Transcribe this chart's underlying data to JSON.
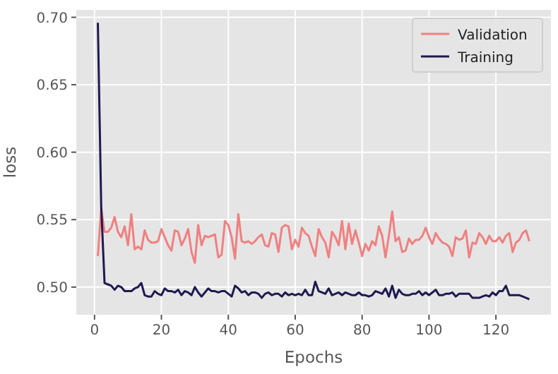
{
  "chart_data": {
    "type": "line",
    "xlabel": "Epochs",
    "ylabel": "loss",
    "x": [
      1,
      2,
      3,
      4,
      5,
      6,
      7,
      8,
      9,
      10,
      11,
      12,
      13,
      14,
      15,
      16,
      17,
      18,
      19,
      20,
      21,
      22,
      23,
      24,
      25,
      26,
      27,
      28,
      29,
      30,
      31,
      32,
      33,
      34,
      35,
      36,
      37,
      38,
      39,
      40,
      41,
      42,
      43,
      44,
      45,
      46,
      47,
      48,
      49,
      50,
      51,
      52,
      53,
      54,
      55,
      56,
      57,
      58,
      59,
      60,
      61,
      62,
      63,
      64,
      65,
      66,
      67,
      68,
      69,
      70,
      71,
      72,
      73,
      74,
      75,
      76,
      77,
      78,
      79,
      80,
      81,
      82,
      83,
      84,
      85,
      86,
      87,
      88,
      89,
      90,
      91,
      92,
      93,
      94,
      95,
      96,
      97,
      98,
      99,
      100,
      101,
      102,
      103,
      104,
      105,
      106,
      107,
      108,
      109,
      110,
      111,
      112,
      113,
      114,
      115,
      116,
      117,
      118,
      119,
      120,
      121,
      122,
      123,
      124,
      125,
      126,
      127,
      128,
      129,
      130
    ],
    "series": [
      {
        "name": "Validation",
        "color": "#f08080",
        "values": [
          0.523,
          0.558,
          0.541,
          0.541,
          0.544,
          0.552,
          0.541,
          0.537,
          0.545,
          0.531,
          0.554,
          0.528,
          0.53,
          0.528,
          0.542,
          0.535,
          0.533,
          0.533,
          0.534,
          0.543,
          0.537,
          0.531,
          0.527,
          0.542,
          0.541,
          0.531,
          0.536,
          0.543,
          0.526,
          0.518,
          0.546,
          0.531,
          0.538,
          0.537,
          0.538,
          0.539,
          0.522,
          0.524,
          0.549,
          0.546,
          0.537,
          0.521,
          0.554,
          0.534,
          0.533,
          0.534,
          0.532,
          0.534,
          0.537,
          0.539,
          0.531,
          0.53,
          0.54,
          0.539,
          0.526,
          0.544,
          0.546,
          0.545,
          0.528,
          0.535,
          0.53,
          0.544,
          0.54,
          0.538,
          0.53,
          0.523,
          0.543,
          0.537,
          0.533,
          0.522,
          0.541,
          0.537,
          0.531,
          0.549,
          0.528,
          0.547,
          0.532,
          0.542,
          0.533,
          0.523,
          0.532,
          0.527,
          0.534,
          0.531,
          0.545,
          0.538,
          0.522,
          0.538,
          0.556,
          0.534,
          0.537,
          0.526,
          0.527,
          0.536,
          0.532,
          0.535,
          0.535,
          0.538,
          0.544,
          0.537,
          0.532,
          0.54,
          0.536,
          0.533,
          0.532,
          0.53,
          0.523,
          0.537,
          0.535,
          0.536,
          0.542,
          0.522,
          0.533,
          0.532,
          0.54,
          0.537,
          0.532,
          0.538,
          0.534,
          0.534,
          0.537,
          0.533,
          0.538,
          0.54,
          0.526,
          0.533,
          0.535,
          0.54,
          0.542,
          0.534
        ]
      },
      {
        "name": "Training",
        "color": "#1f1a4f",
        "values": [
          0.696,
          0.56,
          0.503,
          0.502,
          0.501,
          0.498,
          0.501,
          0.5,
          0.497,
          0.497,
          0.497,
          0.499,
          0.5,
          0.503,
          0.494,
          0.493,
          0.493,
          0.497,
          0.495,
          0.494,
          0.499,
          0.497,
          0.497,
          0.496,
          0.498,
          0.494,
          0.497,
          0.496,
          0.494,
          0.5,
          0.496,
          0.493,
          0.496,
          0.499,
          0.497,
          0.497,
          0.496,
          0.497,
          0.497,
          0.495,
          0.493,
          0.501,
          0.499,
          0.496,
          0.497,
          0.494,
          0.496,
          0.496,
          0.495,
          0.492,
          0.495,
          0.496,
          0.494,
          0.495,
          0.495,
          0.493,
          0.496,
          0.494,
          0.495,
          0.494,
          0.495,
          0.494,
          0.498,
          0.494,
          0.494,
          0.504,
          0.497,
          0.496,
          0.495,
          0.499,
          0.494,
          0.495,
          0.496,
          0.494,
          0.496,
          0.495,
          0.494,
          0.494,
          0.496,
          0.494,
          0.494,
          0.493,
          0.494,
          0.497,
          0.496,
          0.495,
          0.499,
          0.493,
          0.501,
          0.492,
          0.498,
          0.495,
          0.494,
          0.494,
          0.495,
          0.495,
          0.497,
          0.494,
          0.496,
          0.494,
          0.496,
          0.498,
          0.494,
          0.494,
          0.495,
          0.495,
          0.496,
          0.493,
          0.495,
          0.495,
          0.495,
          0.495,
          0.492,
          0.492,
          0.492,
          0.493,
          0.494,
          0.493,
          0.496,
          0.494,
          0.497,
          0.497,
          0.501,
          0.494,
          0.494,
          0.494,
          0.494,
          0.493,
          0.492,
          0.491
        ]
      }
    ],
    "xlim": [
      -5.45,
      136.45
    ],
    "ylim": [
      0.4795,
      0.7055
    ],
    "xticks": [
      0,
      20,
      40,
      60,
      80,
      100,
      120
    ],
    "yticks": [
      {
        "value": 0.5,
        "label": "0.50"
      },
      {
        "value": 0.55,
        "label": "0.55"
      },
      {
        "value": 0.6,
        "label": "0.60"
      },
      {
        "value": 0.65,
        "label": "0.65"
      },
      {
        "value": 0.7,
        "label": "0.70"
      }
    ],
    "grid": true,
    "legend": "top right",
    "marker": "none",
    "line_style": "solid"
  }
}
